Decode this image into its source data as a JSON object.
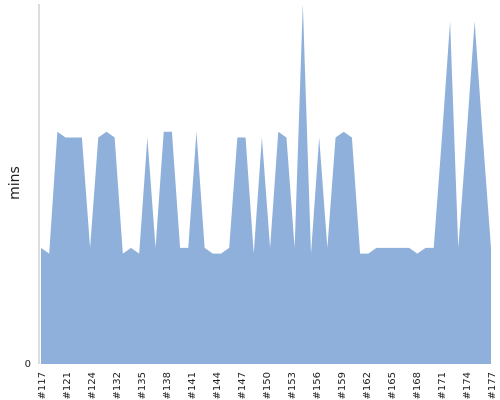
{
  "chart_data": {
    "type": "area",
    "title": "",
    "xlabel": "",
    "ylabel": "mins",
    "grid": false,
    "legend": "none",
    "color": "#8eb0da",
    "ylim": [
      0,
      62
    ],
    "x_tick_labels": [
      "#117",
      "#121",
      "#124",
      "#132",
      "#135",
      "#138",
      "#141",
      "#144",
      "#147",
      "#150",
      "#153",
      "#156",
      "#159",
      "#162",
      "#165",
      "#168",
      "#171",
      "#174",
      "#177"
    ],
    "y_tick_labels": [
      "0"
    ],
    "series": [
      {
        "values": [
          20,
          19,
          40,
          39,
          39,
          39,
          20,
          39,
          40,
          39,
          19,
          20,
          19,
          39,
          20,
          40,
          40,
          20,
          20,
          40,
          20,
          19,
          19,
          20,
          39,
          39,
          19,
          39,
          20,
          40,
          39,
          20,
          62,
          19,
          39,
          20,
          39,
          40,
          39,
          19,
          19,
          20,
          20,
          20,
          20,
          20,
          19,
          20,
          20,
          39,
          59,
          20,
          39,
          59,
          39,
          20
        ]
      }
    ]
  }
}
